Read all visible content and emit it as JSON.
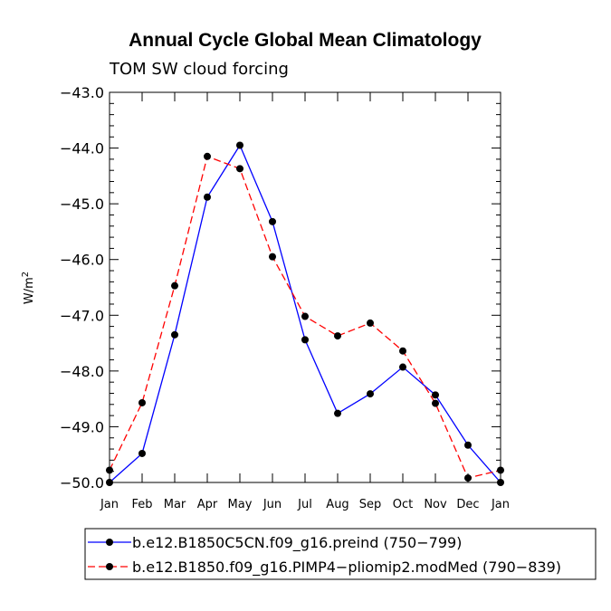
{
  "chart_data": {
    "type": "line",
    "title": "Annual Cycle Global Mean Climatology",
    "subtitle": "TOM SW cloud forcing",
    "ylabel": "W/m",
    "ylabel_sup": "2",
    "xlabel": "",
    "categories": [
      "Jan",
      "Feb",
      "Mar",
      "Apr",
      "May",
      "Jun",
      "Jul",
      "Aug",
      "Sep",
      "Oct",
      "Nov",
      "Dec",
      "Jan"
    ],
    "ylim": [
      -50.0,
      -43.0
    ],
    "yticks": [
      "-43.0",
      "-44.0",
      "-45.0",
      "-46.0",
      "-47.0",
      "-48.0",
      "-49.0",
      "-50.0"
    ],
    "series": [
      {
        "name": "b.e12.B1850C5CN.f09_g16.preind (750-799)",
        "color": "#0000ff",
        "dash": "solid",
        "values": [
          -50.0,
          -49.48,
          -47.35,
          -44.88,
          -43.95,
          -45.32,
          -47.44,
          -48.76,
          -48.41,
          -47.93,
          -48.43,
          -49.33,
          -50.0
        ]
      },
      {
        "name": "b.e12.B1850.f09_g16.PIMP4-pliomip2.modMed (790-839)",
        "color": "#ff0000",
        "dash": "dashed",
        "values": [
          -49.78,
          -48.57,
          -46.47,
          -44.15,
          -44.37,
          -45.95,
          -47.02,
          -47.37,
          -47.14,
          -47.64,
          -48.58,
          -49.92,
          -49.78
        ]
      }
    ]
  }
}
